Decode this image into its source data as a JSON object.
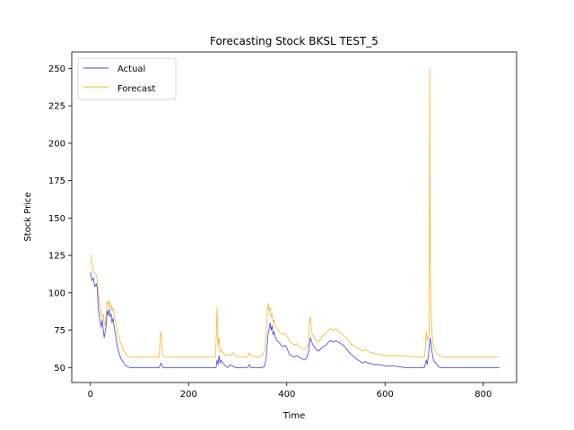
{
  "chart_data": {
    "type": "line",
    "title": "Forecasting Stock BKSL TEST_5",
    "xlabel": "Time",
    "ylabel": "Stock Price",
    "xlim": [
      -38,
      868
    ],
    "ylim": [
      40,
      261
    ],
    "xticks": [
      0,
      200,
      400,
      600,
      800
    ],
    "yticks": [
      50,
      75,
      100,
      125,
      150,
      175,
      200,
      225,
      250
    ],
    "legend_position": "upper-left",
    "grid": false,
    "series": [
      {
        "name": "Actual",
        "color": "#0000dd",
        "points": [
          [
            0,
            114
          ],
          [
            3,
            108
          ],
          [
            6,
            110
          ],
          [
            9,
            104
          ],
          [
            12,
            106
          ],
          [
            14,
            103
          ],
          [
            16,
            90
          ],
          [
            18,
            85
          ],
          [
            20,
            80
          ],
          [
            22,
            77
          ],
          [
            24,
            82
          ],
          [
            26,
            76
          ],
          [
            28,
            70
          ],
          [
            30,
            74
          ],
          [
            32,
            78
          ],
          [
            34,
            88
          ],
          [
            36,
            85
          ],
          [
            38,
            89
          ],
          [
            40,
            84
          ],
          [
            42,
            86
          ],
          [
            44,
            80
          ],
          [
            46,
            83
          ],
          [
            48,
            78
          ],
          [
            50,
            74
          ],
          [
            52,
            70
          ],
          [
            55,
            64
          ],
          [
            58,
            60
          ],
          [
            62,
            56
          ],
          [
            66,
            54
          ],
          [
            70,
            52
          ],
          [
            74,
            51
          ],
          [
            80,
            50
          ],
          [
            100,
            50
          ],
          [
            140,
            50
          ],
          [
            144,
            53
          ],
          [
            146,
            51
          ],
          [
            148,
            50
          ],
          [
            200,
            50
          ],
          [
            256,
            50
          ],
          [
            258,
            55
          ],
          [
            260,
            52
          ],
          [
            262,
            58
          ],
          [
            264,
            53
          ],
          [
            266,
            55
          ],
          [
            270,
            53
          ],
          [
            275,
            51
          ],
          [
            280,
            50
          ],
          [
            285,
            52
          ],
          [
            290,
            51
          ],
          [
            295,
            50
          ],
          [
            300,
            50
          ],
          [
            320,
            50
          ],
          [
            324,
            52
          ],
          [
            326,
            50
          ],
          [
            340,
            50
          ],
          [
            350,
            50
          ],
          [
            355,
            51
          ],
          [
            358,
            57
          ],
          [
            360,
            65
          ],
          [
            362,
            73
          ],
          [
            364,
            76
          ],
          [
            366,
            80
          ],
          [
            368,
            75
          ],
          [
            370,
            78
          ],
          [
            372,
            72
          ],
          [
            374,
            74
          ],
          [
            376,
            71
          ],
          [
            380,
            68
          ],
          [
            384,
            67
          ],
          [
            388,
            65
          ],
          [
            392,
            64
          ],
          [
            396,
            65
          ],
          [
            400,
            63
          ],
          [
            405,
            59
          ],
          [
            410,
            58
          ],
          [
            415,
            57
          ],
          [
            420,
            58
          ],
          [
            425,
            57
          ],
          [
            430,
            56
          ],
          [
            435,
            55
          ],
          [
            440,
            56
          ],
          [
            444,
            60
          ],
          [
            446,
            65
          ],
          [
            448,
            70
          ],
          [
            450,
            68
          ],
          [
            452,
            66
          ],
          [
            456,
            64
          ],
          [
            460,
            62
          ],
          [
            465,
            61
          ],
          [
            470,
            63
          ],
          [
            475,
            64
          ],
          [
            480,
            65
          ],
          [
            485,
            67
          ],
          [
            490,
            68
          ],
          [
            495,
            67
          ],
          [
            500,
            68
          ],
          [
            505,
            67
          ],
          [
            510,
            66
          ],
          [
            515,
            65
          ],
          [
            520,
            63
          ],
          [
            525,
            61
          ],
          [
            530,
            59
          ],
          [
            535,
            58
          ],
          [
            540,
            56
          ],
          [
            545,
            55
          ],
          [
            550,
            54
          ],
          [
            555,
            53
          ],
          [
            560,
            54
          ],
          [
            565,
            53
          ],
          [
            570,
            53
          ],
          [
            575,
            52
          ],
          [
            580,
            52
          ],
          [
            590,
            52
          ],
          [
            600,
            51
          ],
          [
            620,
            51
          ],
          [
            640,
            50
          ],
          [
            660,
            50
          ],
          [
            680,
            50
          ],
          [
            684,
            55
          ],
          [
            686,
            52
          ],
          [
            688,
            58
          ],
          [
            690,
            63
          ],
          [
            692,
            70
          ],
          [
            694,
            65
          ],
          [
            696,
            60
          ],
          [
            698,
            56
          ],
          [
            700,
            54
          ],
          [
            704,
            53
          ],
          [
            708,
            51
          ],
          [
            712,
            50
          ],
          [
            720,
            50
          ],
          [
            760,
            50
          ],
          [
            800,
            50
          ],
          [
            833,
            50
          ]
        ]
      },
      {
        "name": "Forecast",
        "color": "#ffa500",
        "points": [
          [
            0,
            126
          ],
          [
            2,
            122
          ],
          [
            4,
            118
          ],
          [
            6,
            114
          ],
          [
            9,
            113
          ],
          [
            12,
            112
          ],
          [
            14,
            108
          ],
          [
            16,
            100
          ],
          [
            18,
            95
          ],
          [
            20,
            90
          ],
          [
            22,
            85
          ],
          [
            24,
            84
          ],
          [
            26,
            86
          ],
          [
            28,
            80
          ],
          [
            30,
            78
          ],
          [
            32,
            85
          ],
          [
            34,
            94
          ],
          [
            36,
            92
          ],
          [
            38,
            95
          ],
          [
            40,
            90
          ],
          [
            42,
            92
          ],
          [
            44,
            88
          ],
          [
            46,
            90
          ],
          [
            48,
            86
          ],
          [
            50,
            82
          ],
          [
            52,
            80
          ],
          [
            55,
            74
          ],
          [
            58,
            70
          ],
          [
            62,
            66
          ],
          [
            66,
            62
          ],
          [
            70,
            60
          ],
          [
            74,
            58
          ],
          [
            80,
            57
          ],
          [
            100,
            57
          ],
          [
            140,
            57
          ],
          [
            143,
            74
          ],
          [
            145,
            70
          ],
          [
            147,
            58
          ],
          [
            150,
            57
          ],
          [
            200,
            57
          ],
          [
            255,
            57
          ],
          [
            258,
            90
          ],
          [
            260,
            65
          ],
          [
            262,
            70
          ],
          [
            264,
            60
          ],
          [
            266,
            62
          ],
          [
            270,
            60
          ],
          [
            275,
            58
          ],
          [
            280,
            59
          ],
          [
            285,
            58
          ],
          [
            290,
            60
          ],
          [
            295,
            58
          ],
          [
            300,
            57
          ],
          [
            320,
            57
          ],
          [
            324,
            60
          ],
          [
            326,
            58
          ],
          [
            340,
            57
          ],
          [
            350,
            58
          ],
          [
            355,
            62
          ],
          [
            358,
            72
          ],
          [
            360,
            85
          ],
          [
            362,
            93
          ],
          [
            364,
            88
          ],
          [
            366,
            90
          ],
          [
            368,
            84
          ],
          [
            370,
            86
          ],
          [
            372,
            80
          ],
          [
            374,
            82
          ],
          [
            376,
            78
          ],
          [
            380,
            76
          ],
          [
            384,
            74
          ],
          [
            388,
            73
          ],
          [
            392,
            72
          ],
          [
            396,
            73
          ],
          [
            400,
            71
          ],
          [
            405,
            68
          ],
          [
            410,
            66
          ],
          [
            415,
            65
          ],
          [
            420,
            66
          ],
          [
            425,
            64
          ],
          [
            430,
            63
          ],
          [
            435,
            62
          ],
          [
            440,
            63
          ],
          [
            444,
            66
          ],
          [
            446,
            80
          ],
          [
            448,
            84
          ],
          [
            450,
            76
          ],
          [
            452,
            72
          ],
          [
            456,
            70
          ],
          [
            460,
            68
          ],
          [
            465,
            67
          ],
          [
            470,
            70
          ],
          [
            475,
            72
          ],
          [
            480,
            73
          ],
          [
            485,
            75
          ],
          [
            490,
            76
          ],
          [
            495,
            75
          ],
          [
            500,
            76
          ],
          [
            505,
            74
          ],
          [
            510,
            73
          ],
          [
            515,
            72
          ],
          [
            520,
            70
          ],
          [
            525,
            68
          ],
          [
            530,
            66
          ],
          [
            535,
            65
          ],
          [
            540,
            64
          ],
          [
            545,
            63
          ],
          [
            550,
            62
          ],
          [
            555,
            61
          ],
          [
            560,
            62
          ],
          [
            565,
            61
          ],
          [
            570,
            60
          ],
          [
            575,
            60
          ],
          [
            580,
            59
          ],
          [
            590,
            59
          ],
          [
            600,
            58
          ],
          [
            620,
            58
          ],
          [
            640,
            58
          ],
          [
            660,
            57
          ],
          [
            680,
            57
          ],
          [
            682,
            62
          ],
          [
            684,
            74
          ],
          [
            686,
            68
          ],
          [
            688,
            70
          ],
          [
            690,
            72
          ],
          [
            691,
            250
          ],
          [
            692,
            120
          ],
          [
            694,
            88
          ],
          [
            696,
            72
          ],
          [
            698,
            66
          ],
          [
            700,
            63
          ],
          [
            704,
            60
          ],
          [
            708,
            59
          ],
          [
            712,
            58
          ],
          [
            720,
            57
          ],
          [
            760,
            57
          ],
          [
            800,
            57
          ],
          [
            833,
            57
          ]
        ]
      }
    ]
  }
}
